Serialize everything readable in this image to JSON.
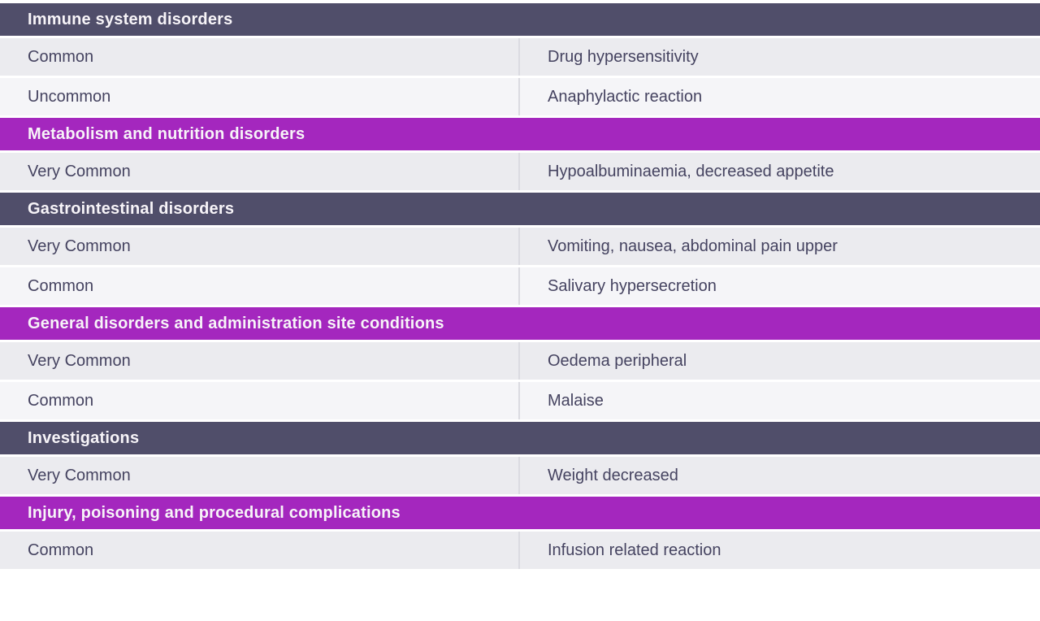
{
  "table": {
    "columns": [
      "frequency",
      "reactions"
    ],
    "colors": {
      "slate_header": "#504E6A",
      "magenta_header": "#A427BE",
      "row_odd": "#EBEBEF",
      "row_even": "#F5F5F8",
      "divider": "#DBDBE1",
      "text": "#454360"
    },
    "sections": [
      {
        "title": "Immune system disorders",
        "variant": "slate",
        "rows": [
          {
            "frequency": "Common",
            "reactions": "Drug hypersensitivity"
          },
          {
            "frequency": "Uncommon",
            "reactions": "Anaphylactic reaction"
          }
        ]
      },
      {
        "title": "Metabolism and nutrition disorders",
        "variant": "magenta",
        "rows": [
          {
            "frequency": "Very Common",
            "reactions": "Hypoalbuminaemia, decreased appetite"
          }
        ]
      },
      {
        "title": "Gastrointestinal disorders",
        "variant": "slate",
        "rows": [
          {
            "frequency": "Very Common",
            "reactions": "Vomiting, nausea, abdominal pain upper"
          },
          {
            "frequency": "Common",
            "reactions": "Salivary hypersecretion"
          }
        ]
      },
      {
        "title": "General disorders and administration site conditions",
        "variant": "magenta",
        "rows": [
          {
            "frequency": "Very Common",
            "reactions": "Oedema peripheral"
          },
          {
            "frequency": "Common",
            "reactions": "Malaise"
          }
        ]
      },
      {
        "title": "Investigations",
        "variant": "slate",
        "rows": [
          {
            "frequency": "Very Common",
            "reactions": "Weight decreased"
          }
        ]
      },
      {
        "title": "Injury, poisoning and procedural complications",
        "variant": "magenta",
        "rows": [
          {
            "frequency": "Common",
            "reactions": "Infusion related reaction"
          }
        ]
      }
    ]
  }
}
